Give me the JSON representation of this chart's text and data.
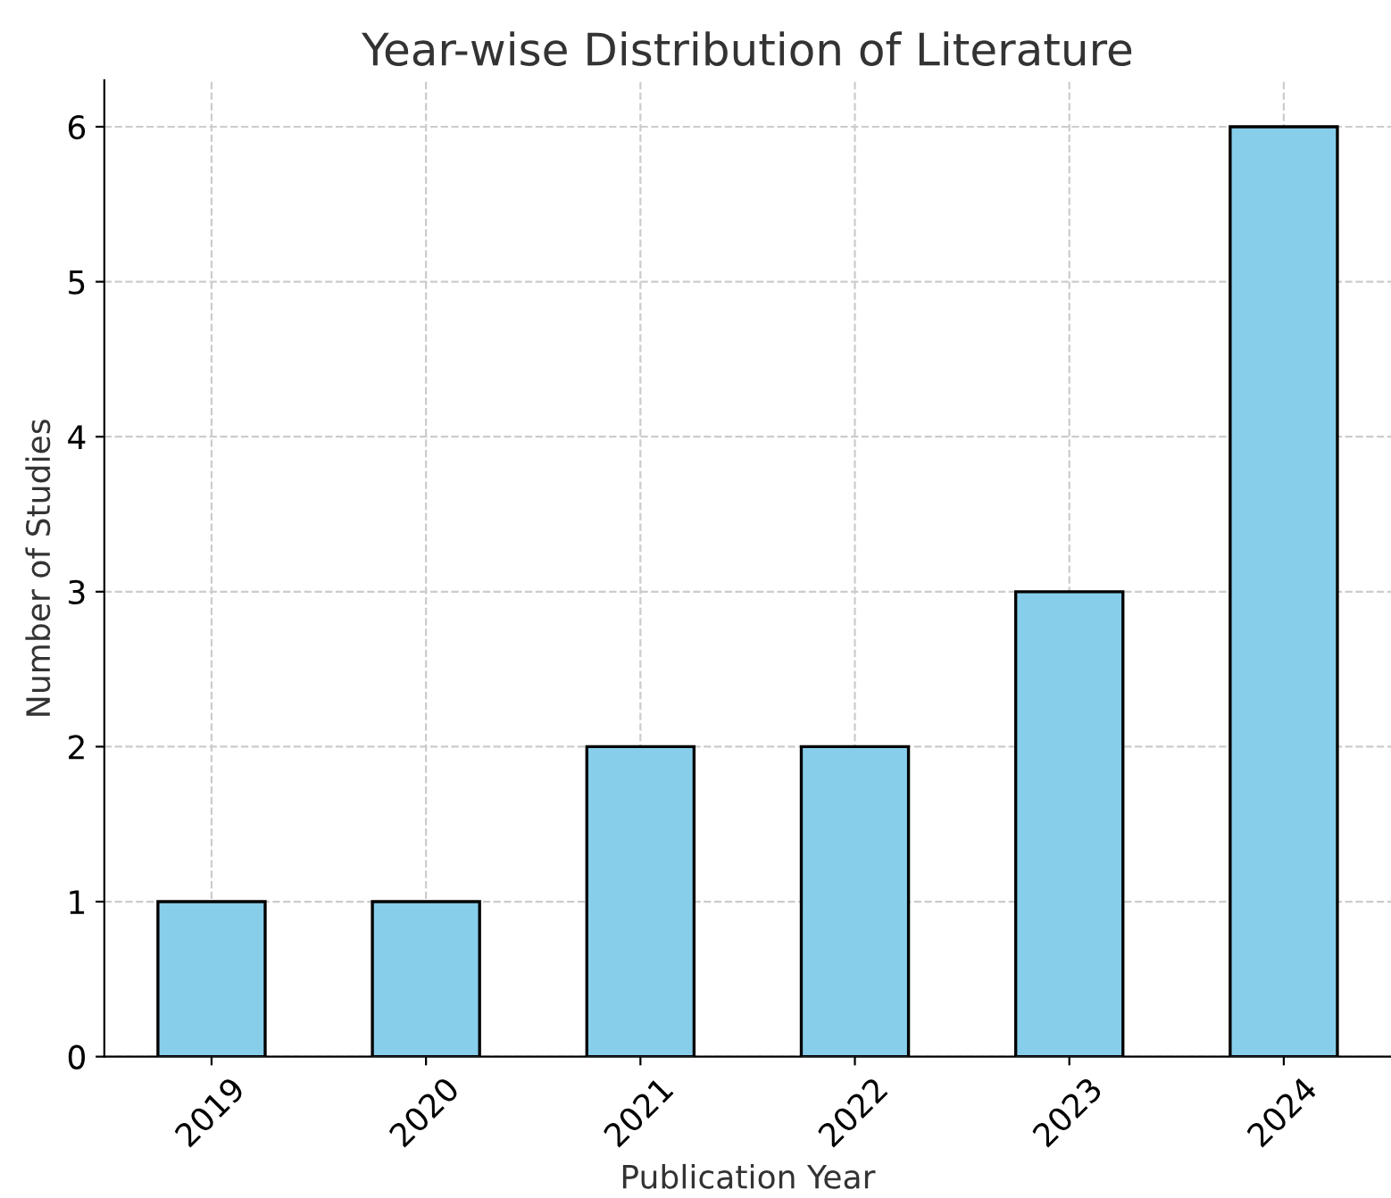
{
  "chart_data": {
    "type": "bar",
    "title": "Year-wise Distribution of Literature",
    "xlabel": "Publication Year",
    "ylabel": "Number of Studies",
    "categories": [
      "2019",
      "2020",
      "2021",
      "2022",
      "2023",
      "2024"
    ],
    "values": [
      1,
      1,
      2,
      2,
      3,
      6
    ],
    "color": "#87ceeb",
    "ylim": [
      0,
      6.3
    ],
    "yticks": [
      0,
      1,
      2,
      3,
      4,
      5,
      6
    ],
    "grid": true
  }
}
